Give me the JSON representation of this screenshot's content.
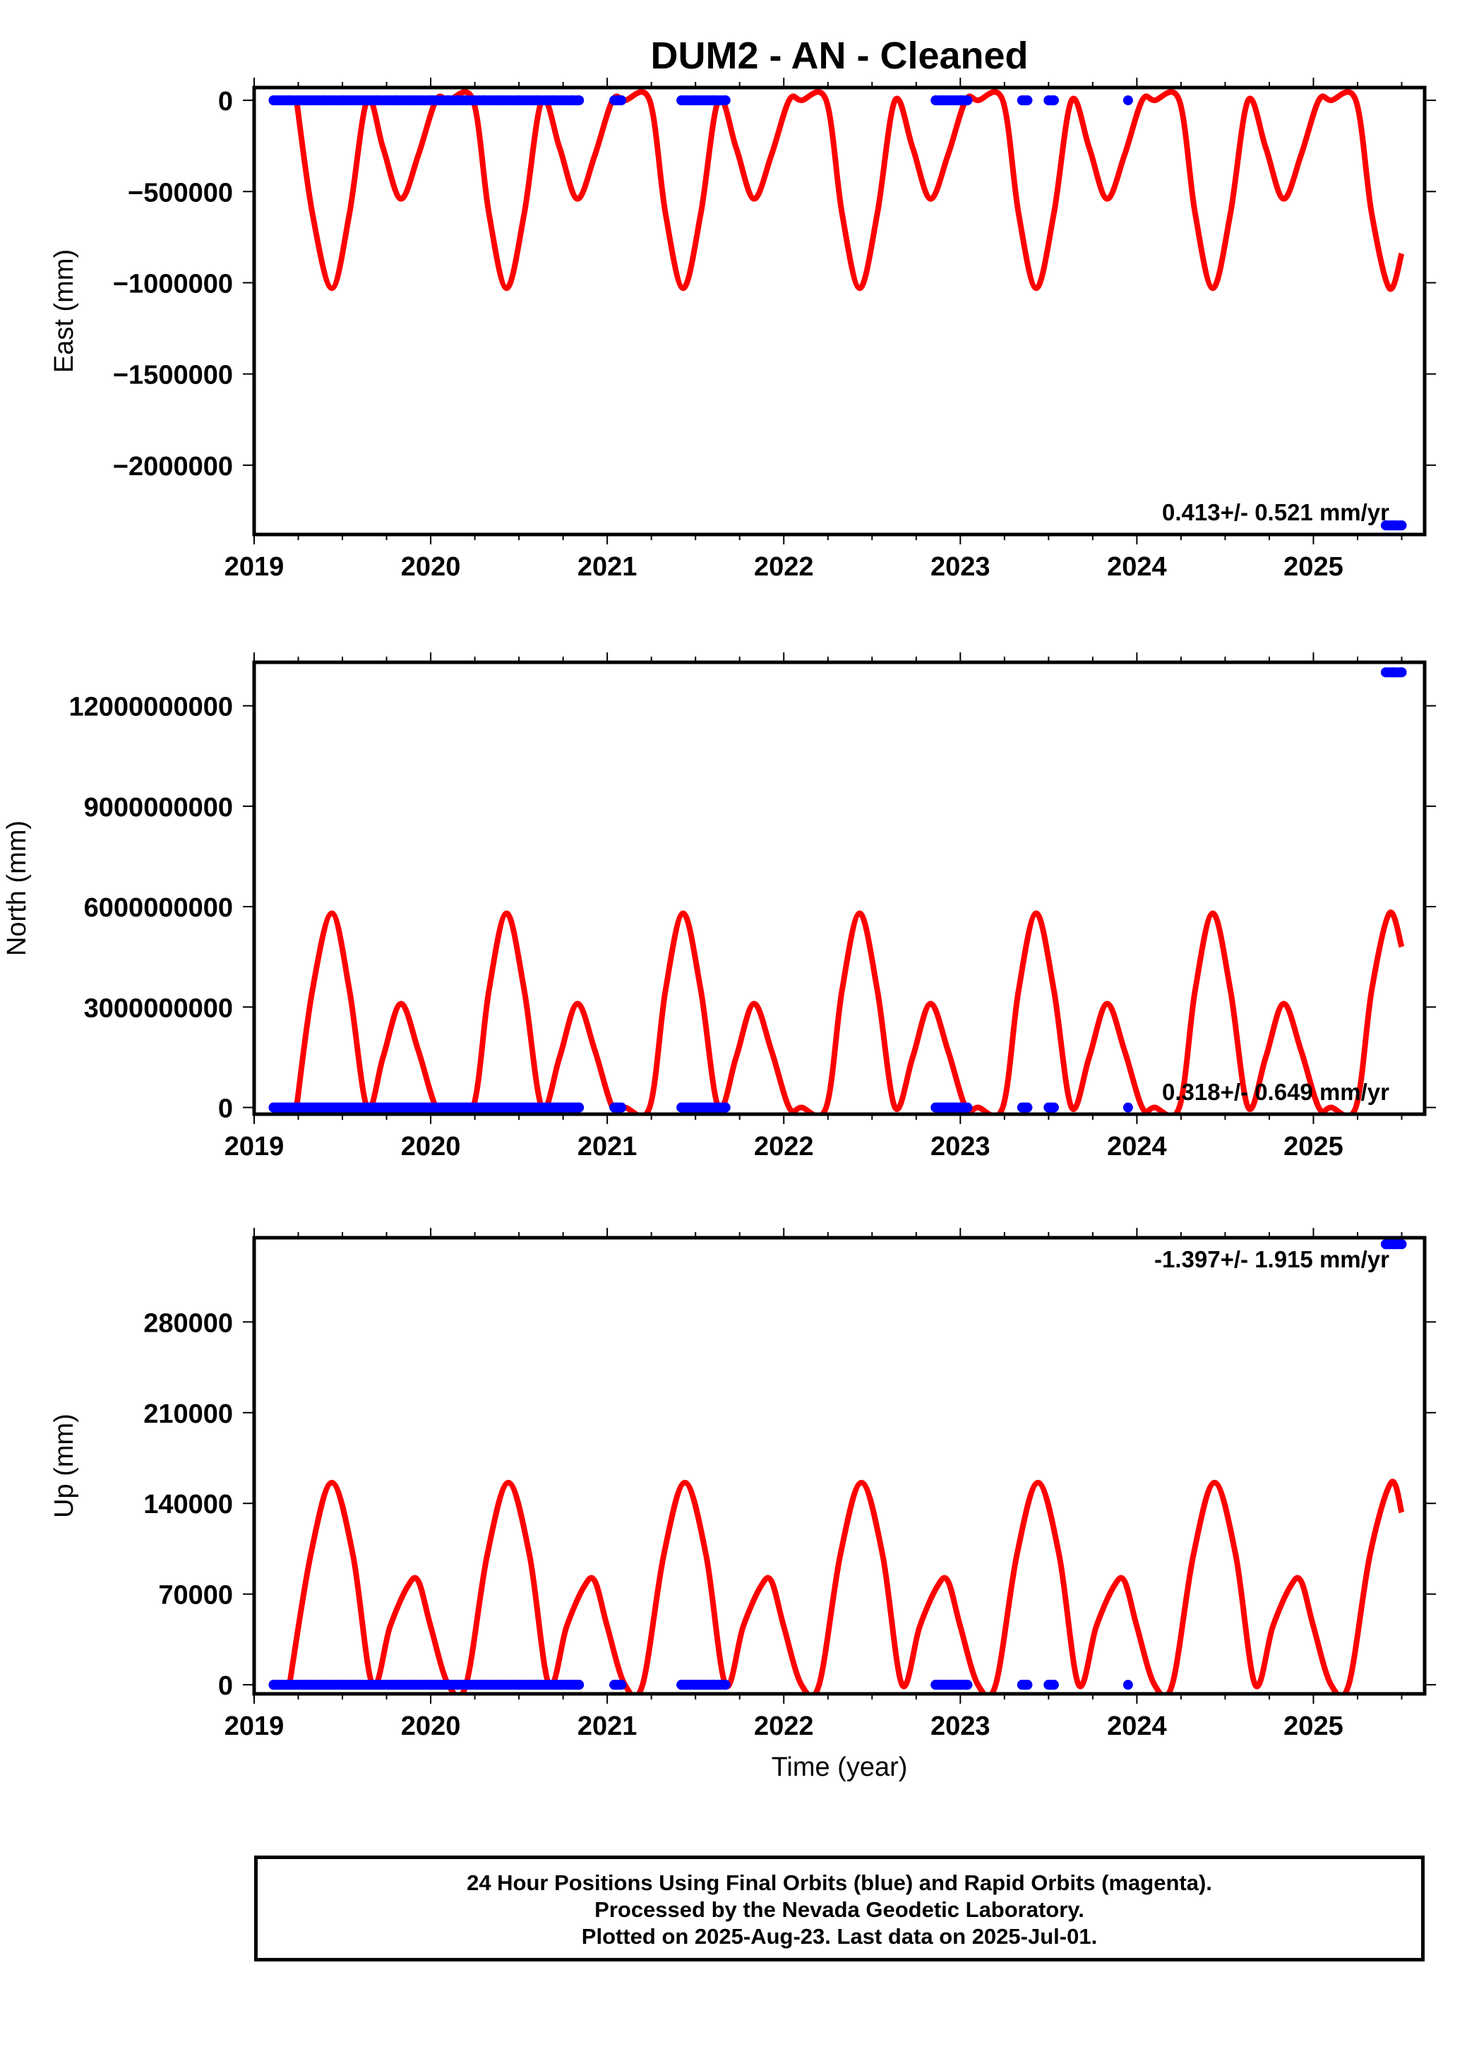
{
  "title": "DUM2  - AN - Cleaned",
  "xlabel": "Time (year)",
  "footer": {
    "line1": "24 Hour Positions Using Final Orbits (blue) and Rapid Orbits (magenta).",
    "line2": "Processed by the Nevada Geodetic Laboratory.",
    "line3": "Plotted on 2025-Aug-23. Last data on 2025-Jul-01."
  },
  "colors": {
    "data": "#0000ff",
    "model": "#ff0000",
    "axis": "#000000"
  },
  "chart_data": [
    {
      "type": "scatter",
      "ylabel": "East (mm)",
      "rate": "0.413+/- 0.521 mm/yr",
      "rate_position": "bottom-right",
      "xlim": [
        2019.0,
        2025.63
      ],
      "ylim": [
        -2380000,
        70000
      ],
      "xticks": [
        2019,
        2020,
        2021,
        2022,
        2023,
        2024,
        2025
      ],
      "yticks": [
        0,
        -500000,
        -1000000,
        -1500000,
        -2000000
      ],
      "ytick_labels": [
        "0",
        "−500000",
        "−1000000",
        "−1500000",
        "−2000000"
      ],
      "model": {
        "x": [
          2019.24,
          2019.33,
          2019.44,
          2019.54,
          2019.64,
          2019.73,
          2019.83,
          2019.93,
          2020.03,
          2020.1,
          2020.24,
          2020.33,
          2020.43,
          2020.53,
          2020.63,
          2020.73,
          2020.83,
          2020.93,
          2021.03,
          2021.1,
          2021.24,
          2021.33,
          2021.43,
          2021.53,
          2021.63,
          2021.73,
          2021.83,
          2021.93,
          2022.03,
          2022.1,
          2022.24,
          2022.33,
          2022.43,
          2022.53,
          2022.63,
          2022.73,
          2022.83,
          2022.93,
          2023.03,
          2023.1,
          2023.24,
          2023.33,
          2023.43,
          2023.53,
          2023.63,
          2023.73,
          2023.83,
          2023.93,
          2024.03,
          2024.1,
          2024.24,
          2024.33,
          2024.43,
          2024.53,
          2024.63,
          2024.73,
          2024.83,
          2024.93,
          2025.03,
          2025.1,
          2025.24,
          2025.33,
          2025.43,
          2025.5
        ],
        "y": [
          0,
          -620000,
          -1030000,
          -620000,
          0,
          -260000,
          -540000,
          -300000,
          0,
          0,
          0,
          -620000,
          -1030000,
          -620000,
          0,
          -260000,
          -540000,
          -300000,
          0,
          0,
          0,
          -620000,
          -1030000,
          -620000,
          0,
          -260000,
          -540000,
          -300000,
          0,
          0,
          0,
          -620000,
          -1030000,
          -620000,
          0,
          -260000,
          -540000,
          -300000,
          0,
          0,
          0,
          -620000,
          -1030000,
          -620000,
          0,
          -260000,
          -540000,
          -300000,
          0,
          0,
          0,
          -620000,
          -1030000,
          -620000,
          0,
          -260000,
          -540000,
          -300000,
          0,
          0,
          0,
          -620000,
          -1030000,
          -840000
        ]
      },
      "data": {
        "x": [
          2019.11,
          2019.2,
          2019.3,
          2019.4,
          2019.5,
          2019.6,
          2019.7,
          2019.8,
          2019.9,
          2020.0,
          2020.1,
          2020.2,
          2020.3,
          2020.4,
          2020.5,
          2020.6,
          2020.7,
          2020.8,
          2020.84,
          2021.04,
          2021.08,
          2021.42,
          2021.5,
          2021.6,
          2021.67,
          2022.86,
          2022.9,
          2023.0,
          2023.04,
          2023.35,
          2023.38,
          2023.5,
          2023.53,
          2023.95,
          2025.41,
          2025.45,
          2025.5
        ],
        "y": [
          0,
          0,
          0,
          0,
          0,
          0,
          0,
          0,
          0,
          0,
          0,
          0,
          0,
          0,
          0,
          0,
          0,
          0,
          0,
          0,
          0,
          0,
          0,
          0,
          0,
          0,
          0,
          0,
          0,
          0,
          0,
          0,
          0,
          0,
          -2330000,
          -2330000,
          -2330000
        ]
      }
    },
    {
      "type": "scatter",
      "ylabel": "North (mm)",
      "rate": "0.318+/- 0.649 mm/yr",
      "rate_position": "bottom-right",
      "xlim": [
        2019.0,
        2025.63
      ],
      "ylim": [
        -200000000,
        13300000000
      ],
      "xticks": [
        2019,
        2020,
        2021,
        2022,
        2023,
        2024,
        2025
      ],
      "yticks": [
        0,
        3000000000,
        6000000000,
        9000000000,
        12000000000
      ],
      "ytick_labels": [
        "0",
        "3000000000",
        "6000000000",
        "9000000000",
        "12000000000"
      ],
      "model": {
        "x": [
          2019.24,
          2019.33,
          2019.44,
          2019.54,
          2019.64,
          2019.73,
          2019.83,
          2019.93,
          2020.03,
          2020.1,
          2020.24,
          2020.33,
          2020.43,
          2020.53,
          2020.63,
          2020.73,
          2020.83,
          2020.93,
          2021.03,
          2021.1,
          2021.24,
          2021.33,
          2021.43,
          2021.53,
          2021.63,
          2021.73,
          2021.83,
          2021.93,
          2022.03,
          2022.1,
          2022.24,
          2022.33,
          2022.43,
          2022.53,
          2022.63,
          2022.73,
          2022.83,
          2022.93,
          2023.03,
          2023.1,
          2023.24,
          2023.33,
          2023.43,
          2023.53,
          2023.63,
          2023.73,
          2023.83,
          2023.93,
          2024.03,
          2024.1,
          2024.24,
          2024.33,
          2024.43,
          2024.53,
          2024.63,
          2024.73,
          2024.83,
          2024.93,
          2025.03,
          2025.1,
          2025.24,
          2025.33,
          2025.43,
          2025.5
        ],
        "y": [
          0,
          3500000000,
          5800000000,
          3500000000,
          0,
          1500000000,
          3100000000,
          1700000000,
          0,
          0,
          0,
          3500000000,
          5800000000,
          3500000000,
          0,
          1500000000,
          3100000000,
          1700000000,
          0,
          0,
          0,
          3500000000,
          5800000000,
          3500000000,
          0,
          1500000000,
          3100000000,
          1700000000,
          0,
          0,
          0,
          3500000000,
          5800000000,
          3500000000,
          0,
          1500000000,
          3100000000,
          1700000000,
          0,
          0,
          0,
          3500000000,
          5800000000,
          3500000000,
          0,
          1500000000,
          3100000000,
          1700000000,
          0,
          0,
          0,
          3500000000,
          5800000000,
          3500000000,
          0,
          1500000000,
          3100000000,
          1700000000,
          0,
          0,
          0,
          3500000000,
          5800000000,
          4800000000
        ]
      },
      "data": {
        "x": [
          2019.11,
          2019.2,
          2019.3,
          2019.4,
          2019.5,
          2019.6,
          2019.7,
          2019.8,
          2019.9,
          2020.0,
          2020.1,
          2020.2,
          2020.3,
          2020.4,
          2020.5,
          2020.6,
          2020.7,
          2020.8,
          2020.84,
          2021.04,
          2021.08,
          2021.42,
          2021.5,
          2021.6,
          2021.67,
          2022.86,
          2022.9,
          2023.0,
          2023.04,
          2023.35,
          2023.38,
          2023.5,
          2023.53,
          2023.95,
          2025.41,
          2025.45,
          2025.5
        ],
        "y": [
          0,
          0,
          0,
          0,
          0,
          0,
          0,
          0,
          0,
          0,
          0,
          0,
          0,
          0,
          0,
          0,
          0,
          0,
          0,
          0,
          0,
          0,
          0,
          0,
          0,
          0,
          0,
          0,
          0,
          0,
          0,
          0,
          0,
          0,
          13000000000,
          13000000000,
          13000000000
        ]
      }
    },
    {
      "type": "scatter",
      "ylabel": "Up (mm)",
      "rate": "-1.397+/- 1.915 mm/yr",
      "rate_position": "top-right",
      "xlim": [
        2019.0,
        2025.63
      ],
      "ylim": [
        -7000,
        345000
      ],
      "xticks": [
        2019,
        2020,
        2021,
        2022,
        2023,
        2024,
        2025
      ],
      "yticks": [
        0,
        70000,
        140000,
        210000,
        280000
      ],
      "ytick_labels": [
        "0",
        "70000",
        "140000",
        "210000",
        "280000"
      ],
      "model": {
        "x": [
          2019.2,
          2019.32,
          2019.44,
          2019.56,
          2019.67,
          2019.77,
          2019.87,
          2019.93,
          2020.0,
          2020.1,
          2020.2,
          2020.32,
          2020.44,
          2020.56,
          2020.67,
          2020.77,
          2020.87,
          2020.93,
          2021.0,
          2021.1,
          2021.2,
          2021.32,
          2021.44,
          2021.56,
          2021.67,
          2021.77,
          2021.87,
          2021.93,
          2022.0,
          2022.1,
          2022.2,
          2022.32,
          2022.44,
          2022.56,
          2022.67,
          2022.77,
          2022.87,
          2022.93,
          2023.0,
          2023.1,
          2023.2,
          2023.32,
          2023.44,
          2023.56,
          2023.67,
          2023.77,
          2023.87,
          2023.93,
          2024.0,
          2024.1,
          2024.2,
          2024.32,
          2024.44,
          2024.56,
          2024.67,
          2024.77,
          2024.87,
          2024.93,
          2025.0,
          2025.1,
          2025.2,
          2025.32,
          2025.44,
          2025.5
        ],
        "y": [
          0,
          100000,
          156000,
          100000,
          0,
          45000,
          76000,
          80000,
          45000,
          0,
          0,
          100000,
          156000,
          100000,
          0,
          45000,
          76000,
          80000,
          45000,
          0,
          0,
          100000,
          156000,
          100000,
          0,
          45000,
          76000,
          80000,
          45000,
          0,
          0,
          100000,
          156000,
          100000,
          0,
          45000,
          76000,
          80000,
          45000,
          0,
          0,
          100000,
          156000,
          100000,
          0,
          45000,
          76000,
          80000,
          45000,
          0,
          0,
          100000,
          156000,
          100000,
          0,
          45000,
          76000,
          80000,
          45000,
          0,
          0,
          100000,
          156000,
          133000
        ]
      },
      "data": {
        "x": [
          2019.11,
          2019.2,
          2019.3,
          2019.4,
          2019.5,
          2019.6,
          2019.7,
          2019.8,
          2019.9,
          2020.0,
          2020.1,
          2020.2,
          2020.3,
          2020.4,
          2020.5,
          2020.6,
          2020.7,
          2020.8,
          2020.84,
          2021.04,
          2021.08,
          2021.42,
          2021.5,
          2021.6,
          2021.67,
          2022.86,
          2022.9,
          2023.0,
          2023.04,
          2023.35,
          2023.38,
          2023.5,
          2023.53,
          2023.95,
          2025.41,
          2025.45,
          2025.5
        ],
        "y": [
          0,
          0,
          0,
          0,
          0,
          0,
          0,
          0,
          0,
          0,
          0,
          0,
          0,
          0,
          0,
          0,
          0,
          0,
          0,
          0,
          0,
          0,
          0,
          0,
          0,
          0,
          0,
          0,
          0,
          0,
          0,
          0,
          0,
          0,
          340000,
          340000,
          340000
        ]
      }
    }
  ]
}
